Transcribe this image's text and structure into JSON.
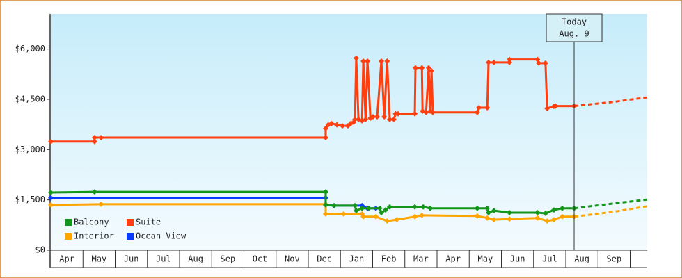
{
  "chart_data": {
    "type": "line",
    "xlim": [
      0,
      18.53
    ],
    "ylim": [
      0,
      7050
    ],
    "xticks": [
      {
        "value": 0.5,
        "label": "Apr"
      },
      {
        "value": 1.5,
        "label": "May"
      },
      {
        "value": 2.5,
        "label": "Jun"
      },
      {
        "value": 3.5,
        "label": "Jul"
      },
      {
        "value": 4.5,
        "label": "Aug"
      },
      {
        "value": 5.5,
        "label": "Sep"
      },
      {
        "value": 6.5,
        "label": "Oct"
      },
      {
        "value": 7.5,
        "label": "Nov"
      },
      {
        "value": 8.5,
        "label": "Dec"
      },
      {
        "value": 9.5,
        "label": "Jan"
      },
      {
        "value": 10.5,
        "label": "Feb"
      },
      {
        "value": 11.5,
        "label": "Mar"
      },
      {
        "value": 12.5,
        "label": "Apr"
      },
      {
        "value": 13.5,
        "label": "May"
      },
      {
        "value": 14.5,
        "label": "Jun"
      },
      {
        "value": 15.5,
        "label": "Jul"
      },
      {
        "value": 16.5,
        "label": "Aug"
      },
      {
        "value": 17.5,
        "label": "Sep"
      }
    ],
    "yticks": [
      {
        "value": 0,
        "label": "$0"
      },
      {
        "value": 1500,
        "label": "$1,500"
      },
      {
        "value": 3000,
        "label": "$3,000"
      },
      {
        "value": 4500,
        "label": "$4,500"
      },
      {
        "value": 6000,
        "label": "$6,000"
      }
    ],
    "annotation": {
      "lines": [
        "Today",
        "Aug. 9"
      ],
      "x": 16.26
    },
    "legend": "lower left",
    "series": [
      {
        "name": "Balcony",
        "color": "#14961a",
        "x": [
          0,
          1.36,
          8.54,
          8.54,
          8.8,
          9.45,
          9.49,
          9.67,
          9.88,
          10.22,
          10.27,
          10.4,
          10.53,
          11.31,
          11.57,
          11.79,
          13.25,
          13.56,
          13.6,
          13.77,
          14.25,
          15.12,
          15.37,
          15.63,
          15.89,
          16.26
        ],
        "values": [
          1720,
          1740,
          1740,
          1350,
          1330,
          1330,
          1180,
          1250,
          1250,
          1250,
          1120,
          1200,
          1290,
          1290,
          1290,
          1250,
          1250,
          1250,
          1120,
          1180,
          1120,
          1120,
          1100,
          1200,
          1250,
          1250
        ],
        "forecast_x": [
          16.26,
          17.45,
          18.53
        ],
        "forecast_values": [
          1250,
          1390,
          1510
        ]
      },
      {
        "name": "Suite",
        "color": "#ff3f0f",
        "x": [
          0,
          1.36,
          1.36,
          1.56,
          8.54,
          8.54,
          8.62,
          8.72,
          8.89,
          9.06,
          9.23,
          9.32,
          9.41,
          9.45,
          9.49,
          9.56,
          9.67,
          9.71,
          9.78,
          9.84,
          9.93,
          10.01,
          10.14,
          10.27,
          10.36,
          10.45,
          10.53,
          10.66,
          10.71,
          10.79,
          11.31,
          11.33,
          11.53,
          11.55,
          11.66,
          11.74,
          11.79,
          11.83,
          11.87,
          13.25,
          13.3,
          13.56,
          13.6,
          13.77,
          14.25,
          14.25,
          15.12,
          15.16,
          15.37,
          15.42,
          15.63,
          15.68,
          16.26
        ],
        "values": [
          3240,
          3240,
          3360,
          3360,
          3360,
          3630,
          3740,
          3780,
          3740,
          3710,
          3710,
          3780,
          3820,
          3900,
          5730,
          3900,
          3860,
          5640,
          3900,
          5640,
          3940,
          3980,
          3980,
          5640,
          3980,
          5640,
          3900,
          3900,
          4070,
          4070,
          4070,
          5440,
          5440,
          4150,
          4110,
          5440,
          4150,
          5350,
          4110,
          4110,
          4250,
          4250,
          5600,
          5600,
          5600,
          5690,
          5690,
          5580,
          5580,
          4230,
          4290,
          4300,
          4300
        ],
        "forecast_x": [
          16.26,
          17.45,
          18.53
        ],
        "forecast_values": [
          4300,
          4420,
          4560
        ]
      },
      {
        "name": "Interior",
        "color": "#ffa500",
        "x": [
          0,
          1.56,
          8.54,
          8.54,
          9.1,
          9.67,
          9.71,
          10.1,
          10.45,
          10.75,
          11.31,
          11.53,
          13.25,
          13.56,
          13.77,
          14.25,
          15.12,
          15.42,
          15.63,
          15.89,
          16.26
        ],
        "values": [
          1350,
          1370,
          1370,
          1080,
          1080,
          1080,
          1000,
          1000,
          870,
          910,
          1000,
          1040,
          1020,
          960,
          910,
          930,
          960,
          870,
          910,
          1000,
          1000
        ],
        "forecast_x": [
          16.26,
          17.45,
          18.53
        ],
        "forecast_values": [
          1000,
          1140,
          1310
        ]
      },
      {
        "name": "Ocean View",
        "color": "#0a3cff",
        "x": [
          0,
          8.54,
          8.54,
          8.8,
          9.67,
          9.84,
          10.1
        ],
        "values": [
          1560,
          1560,
          1350,
          1330,
          1330,
          1250,
          1250
        ]
      }
    ]
  }
}
